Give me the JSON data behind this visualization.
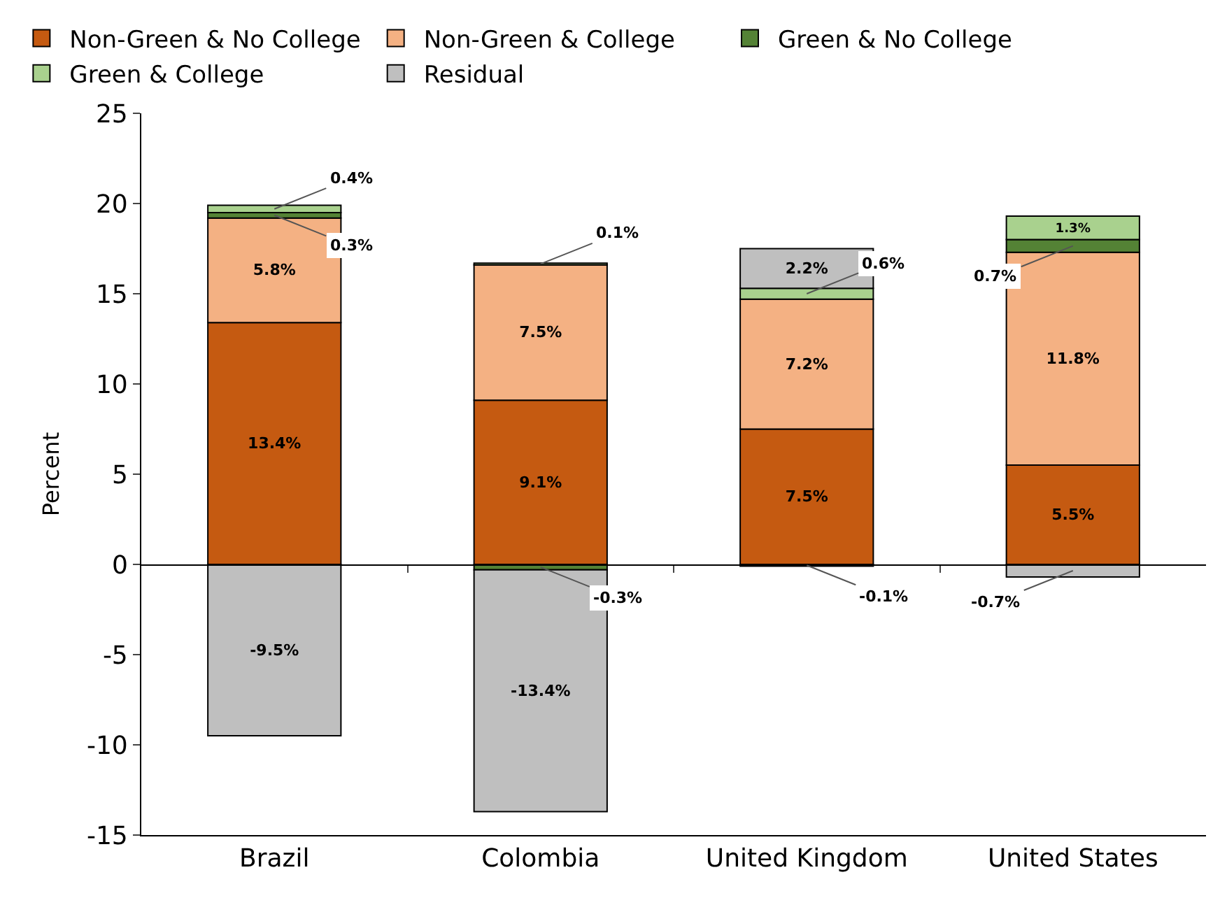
{
  "chart_data": {
    "type": "bar",
    "stacked": true,
    "ylabel": "Percent",
    "categories": [
      "Brazil",
      "Colombia",
      "United Kingdom",
      "United States"
    ],
    "series": [
      {
        "name": "Non-Green & No College",
        "color": "#c55a11",
        "values": [
          13.4,
          9.1,
          7.5,
          5.5
        ],
        "value_labels": [
          "13.4%",
          "9.1%",
          "7.5%",
          "5.5%"
        ]
      },
      {
        "name": "Non-Green & College",
        "color": "#f4b183",
        "values": [
          5.8,
          7.5,
          7.2,
          11.8
        ],
        "value_labels": [
          "5.8%",
          "7.5%",
          "7.2%",
          "11.8%"
        ]
      },
      {
        "name": "Green & No College",
        "color": "#548235",
        "values": [
          0.3,
          -0.3,
          -0.1,
          0.7
        ],
        "value_labels": [
          "0.3%",
          "-0.3%",
          "-0.1%",
          "0.7%"
        ]
      },
      {
        "name": "Green & College",
        "color": "#a9d18e",
        "values": [
          0.4,
          0.1,
          0.6,
          1.3
        ],
        "value_labels": [
          "0.4%",
          "0.1%",
          "0.6%",
          "1.3%"
        ]
      },
      {
        "name": "Residual",
        "color": "#bfbfbf",
        "values": [
          -9.5,
          -13.4,
          2.2,
          -0.7
        ],
        "value_labels": [
          "-9.5%",
          "-13.4%",
          "2.2%",
          "-0.7%"
        ]
      }
    ],
    "ylim": [
      -15,
      25
    ],
    "yticks": [
      -15,
      -10,
      -5,
      0,
      5,
      10,
      15,
      20,
      25
    ],
    "legend": "top"
  }
}
